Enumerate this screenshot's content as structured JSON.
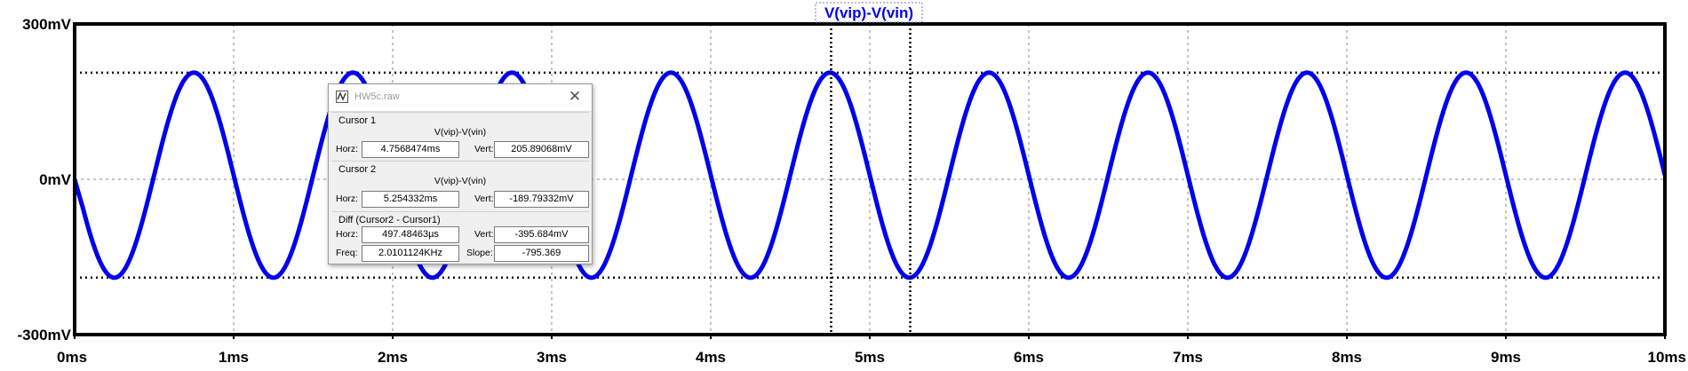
{
  "plot": {
    "trace_label": "V(vip)-V(vin)",
    "y_ticks": [
      {
        "value": 300,
        "label": "300mV"
      },
      {
        "value": 0,
        "label": "0mV"
      },
      {
        "value": -300,
        "label": "-300mV"
      }
    ],
    "x_ticks": [
      "0ms",
      "1ms",
      "2ms",
      "3ms",
      "4ms",
      "5ms",
      "6ms",
      "7ms",
      "8ms",
      "9ms",
      "10ms"
    ],
    "trace_color": "#0000ee",
    "cursor1_ms": 4.7568474,
    "cursor2_ms": 5.254332
  },
  "chart_data": {
    "type": "line",
    "title": "V(vip)-V(vin)",
    "xlabel": "",
    "ylabel": "",
    "xlim": [
      0,
      10
    ],
    "ylim": [
      -300,
      300
    ],
    "x_unit": "ms",
    "y_unit": "mV",
    "grid": true,
    "series": [
      {
        "name": "V(vip)-V(vin)",
        "waveform": "sine",
        "frequency_khz": 1.0,
        "amplitude_mv": 198,
        "offset_mv": 8,
        "phase": "starts at 0mV, falls to first minimum near 0.25ms"
      }
    ],
    "markers": {
      "top_mv": 205.89068,
      "bottom_mv": -189.79332
    }
  },
  "dialog": {
    "title": "HW5c.raw",
    "close_icon": "close-icon",
    "cursor1": {
      "header": "Cursor 1",
      "trace": "V(vip)-V(vin)",
      "horz_label": "Horz:",
      "horz_value": "4.7568474ms",
      "vert_label": "Vert:",
      "vert_value": "205.89068mV"
    },
    "cursor2": {
      "header": "Cursor 2",
      "trace": "V(vip)-V(vin)",
      "horz_label": "Horz:",
      "horz_value": "5.254332ms",
      "vert_label": "Vert:",
      "vert_value": "-189.79332mV"
    },
    "diff": {
      "header": "Diff (Cursor2 - Cursor1)",
      "horz_label": "Horz:",
      "horz_value": "497.48463µs",
      "vert_label": "Vert:",
      "vert_value": "-395.684mV",
      "freq_label": "Freq:",
      "freq_value": "2.0101124KHz",
      "slope_label": "Slope:",
      "slope_value": "-795.369"
    }
  }
}
